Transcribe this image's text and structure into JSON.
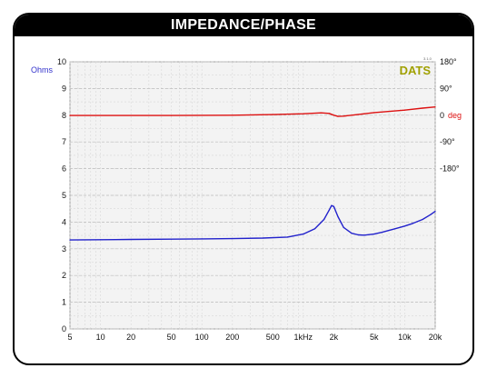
{
  "title": "IMPEDANCE/PHASE",
  "logo": {
    "text": "DATS",
    "version": "3.1.0",
    "color": "#a0a000"
  },
  "colors": {
    "impedance": "#2222cc",
    "phase": "#dd1111",
    "grid": "#cfcfcf",
    "plot_bg": "#f3f3f3"
  },
  "chart_data": {
    "type": "line",
    "title": "IMPEDANCE/PHASE",
    "xscale": "log",
    "xlim": [
      5,
      20000
    ],
    "x_ticks": [
      {
        "value": 5,
        "label": "5"
      },
      {
        "value": 10,
        "label": "10"
      },
      {
        "value": 20,
        "label": "20"
      },
      {
        "value": 50,
        "label": "50"
      },
      {
        "value": 100,
        "label": "100"
      },
      {
        "value": 200,
        "label": "200"
      },
      {
        "value": 500,
        "label": "500"
      },
      {
        "value": 1000,
        "label": "1kHz"
      },
      {
        "value": 2000,
        "label": "2k"
      },
      {
        "value": 5000,
        "label": "5k"
      },
      {
        "value": 10000,
        "label": "10k"
      },
      {
        "value": 20000,
        "label": "20k"
      }
    ],
    "y_left": {
      "label": "Ohms",
      "lim": [
        0,
        10
      ],
      "ticks": [
        "0",
        "1",
        "2",
        "3",
        "4",
        "5",
        "6",
        "7",
        "8",
        "9",
        "10"
      ]
    },
    "y_right": {
      "unit": "deg",
      "lim": [
        -180,
        180
      ],
      "ticks": [
        {
          "value": 180,
          "label": "180°"
        },
        {
          "value": 90,
          "label": "90°"
        },
        {
          "value": 0,
          "label": "0"
        },
        {
          "value": -90,
          "label": "-90°"
        },
        {
          "value": -180,
          "label": "-180°"
        }
      ]
    },
    "grid": true,
    "series": [
      {
        "axis": "left",
        "color": "#2222cc",
        "x": [
          5,
          10,
          20,
          50,
          100,
          200,
          400,
          700,
          1000,
          1300,
          1600,
          1800,
          1900,
          2000,
          2200,
          2500,
          3000,
          3500,
          4000,
          5000,
          6000,
          8000,
          10000,
          12000,
          15000,
          18000,
          20000
        ],
        "values": [
          3.33,
          3.34,
          3.35,
          3.36,
          3.37,
          3.38,
          3.4,
          3.44,
          3.55,
          3.75,
          4.1,
          4.45,
          4.62,
          4.58,
          4.2,
          3.8,
          3.58,
          3.52,
          3.51,
          3.55,
          3.62,
          3.75,
          3.85,
          3.95,
          4.1,
          4.28,
          4.4
        ]
      },
      {
        "axis": "right",
        "color": "#dd1111",
        "x": [
          5,
          50,
          200,
          500,
          1000,
          1500,
          1800,
          2000,
          2200,
          2500,
          3000,
          4000,
          5000,
          10000,
          15000,
          20000
        ],
        "values": [
          -1,
          -1,
          0,
          2,
          5,
          8,
          6,
          0,
          -4,
          -3,
          0,
          5,
          9,
          17,
          24,
          28
        ]
      }
    ]
  }
}
